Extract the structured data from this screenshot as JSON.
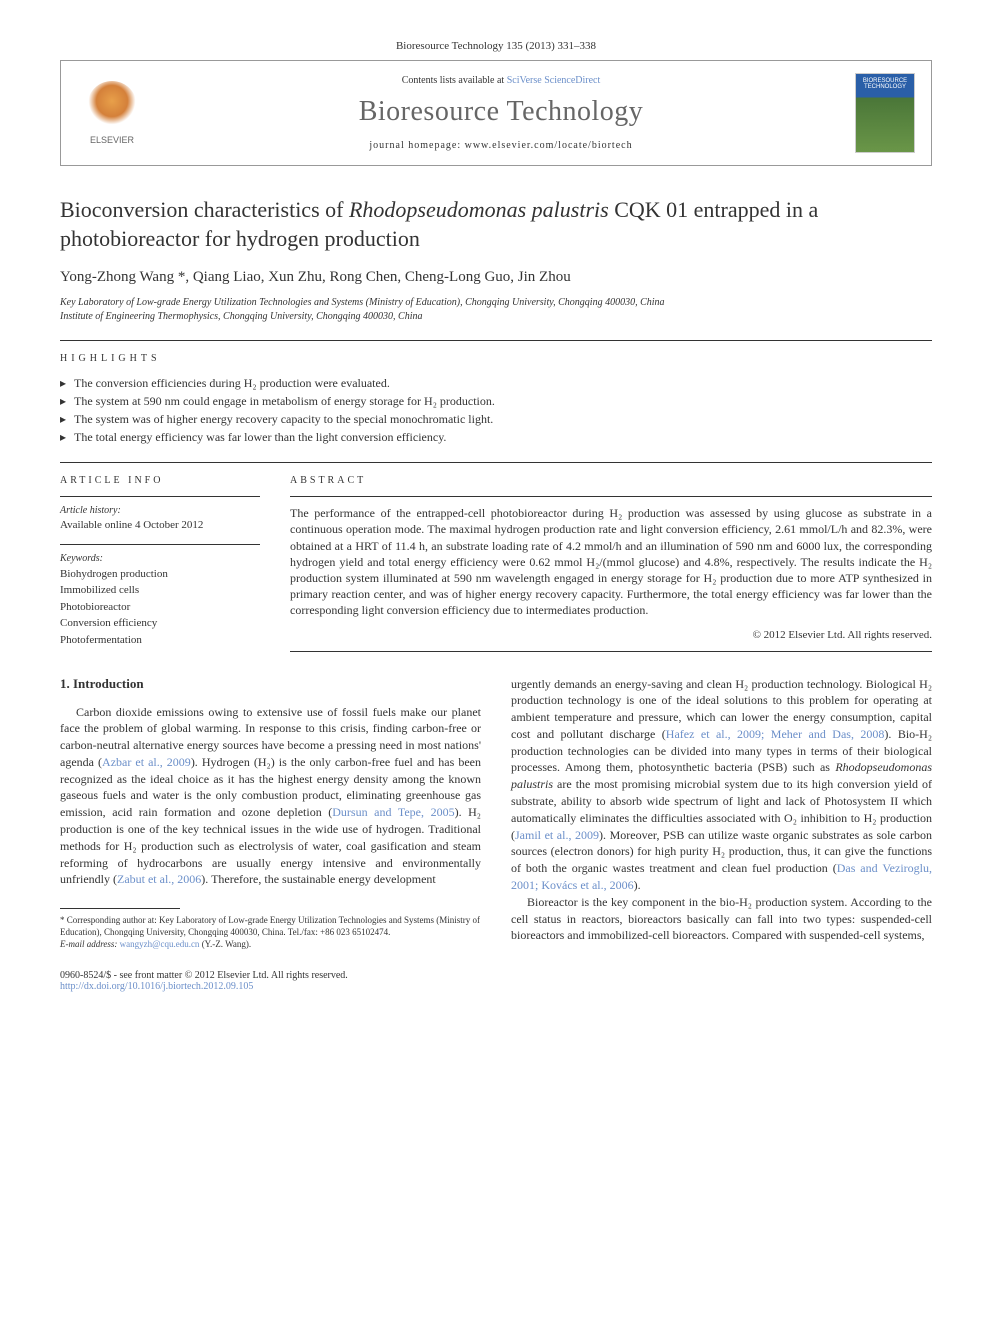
{
  "journal_ref": "Bioresource Technology 135 (2013) 331–338",
  "header": {
    "contents_prefix": "Contents lists available at ",
    "contents_link": "SciVerse ScienceDirect",
    "journal_name": "Bioresource Technology",
    "homepage_prefix": "journal homepage: ",
    "homepage_url": "www.elsevier.com/locate/biortech",
    "elsevier_label": "ELSEVIER",
    "cover_label": "BIORESOURCE TECHNOLOGY"
  },
  "title_parts": {
    "pre": "Bioconversion characteristics of ",
    "italic": "Rhodopseudomonas palustris",
    "post": " CQK 01 entrapped in a photobioreactor for hydrogen production"
  },
  "authors": "Yong-Zhong Wang *, Qiang Liao, Xun Zhu, Rong Chen, Cheng-Long Guo, Jin Zhou",
  "affiliations": [
    "Key Laboratory of Low-grade Energy Utilization Technologies and Systems (Ministry of Education), Chongqing University, Chongqing 400030, China",
    "Institute of Engineering Thermophysics, Chongqing University, Chongqing 400030, China"
  ],
  "highlights_label": "HIGHLIGHTS",
  "highlights": [
    "The conversion efficiencies during H₂ production were evaluated.",
    "The system at 590 nm could engage in metabolism of energy storage for H₂ production.",
    "The system was of higher energy recovery capacity to the special monochromatic light.",
    "The total energy efficiency was far lower than the light conversion efficiency."
  ],
  "article_info": {
    "heading": "ARTICLE INFO",
    "history_label": "Article history:",
    "history_text": "Available online 4 October 2012",
    "keywords_label": "Keywords:",
    "keywords": [
      "Biohydrogen production",
      "Immobilized cells",
      "Photobioreactor",
      "Conversion efficiency",
      "Photofermentation"
    ]
  },
  "abstract": {
    "heading": "ABSTRACT",
    "text": "The performance of the entrapped-cell photobioreactor during H₂ production was assessed by using glucose as substrate in a continuous operation mode. The maximal hydrogen production rate and light conversion efficiency, 2.61 mmol/L/h and 82.3%, were obtained at a HRT of 11.4 h, an substrate loading rate of 4.2 mmol/h and an illumination of 590 nm and 6000 lux, the corresponding hydrogen yield and total energy efficiency were 0.62 mmol H₂/(mmol glucose) and 4.8%, respectively. The results indicate the H₂ production system illuminated at 590 nm wavelength engaged in energy storage for H₂ production due to more ATP synthesized in primary reaction center, and was of higher energy recovery capacity. Furthermore, the total energy efficiency was far lower than the corresponding light conversion efficiency due to intermediates production.",
    "copyright": "© 2012 Elsevier Ltd. All rights reserved."
  },
  "introduction": {
    "heading": "1. Introduction",
    "col1_segments": [
      {
        "t": "text",
        "v": "Carbon dioxide emissions owing to extensive use of fossil fuels make our planet face the problem of global warming. In response to this crisis, finding carbon-free or carbon-neutral alternative energy sources have become a pressing need in most nations' agenda ("
      },
      {
        "t": "link",
        "v": "Azbar et al., 2009"
      },
      {
        "t": "text",
        "v": "). Hydrogen (H₂) is the only carbon-free fuel and has been recognized as the ideal choice as it has the highest energy density among the known gaseous fuels and water is the only combustion product, eliminating greenhouse gas emission, acid rain formation and ozone depletion ("
      },
      {
        "t": "link",
        "v": "Dursun and Tepe, 2005"
      },
      {
        "t": "text",
        "v": "). H₂ production is one of the key technical issues in the wide use of hydrogen. Traditional methods for H₂ production such as electrolysis of water, coal gasification and steam reforming of hydrocarbons are usually energy intensive and environmentally unfriendly ("
      },
      {
        "t": "link",
        "v": "Zabut et al., 2006"
      },
      {
        "t": "text",
        "v": "). Therefore, the sustainable energy development"
      }
    ],
    "col2_segments": [
      {
        "t": "text",
        "v": "urgently demands an energy-saving and clean H₂ production technology. Biological H₂ production technology is one of the ideal solutions to this problem for operating at ambient temperature and pressure, which can lower the energy consumption, capital cost and pollutant discharge ("
      },
      {
        "t": "link",
        "v": "Hafez et al., 2009; Meher and Das, 2008"
      },
      {
        "t": "text",
        "v": "). Bio-H₂ production technologies can be divided into many types in terms of their biological processes. Among them, photosynthetic bacteria (PSB) such as "
      },
      {
        "t": "italic",
        "v": "Rhodopseudomonas palustris"
      },
      {
        "t": "text",
        "v": " are the most promising microbial system due to its high conversion yield of substrate, ability to absorb wide spectrum of light and lack of Photosystem II which automatically eliminates the difficulties associated with O₂ inhibition to H₂ production ("
      },
      {
        "t": "link",
        "v": "Jamil et al., 2009"
      },
      {
        "t": "text",
        "v": "). Moreover, PSB can utilize waste organic substrates as sole carbon sources (electron donors) for high purity H₂ production, thus, it can give the functions of both the organic wastes treatment and clean fuel production ("
      },
      {
        "t": "link",
        "v": "Das and Veziroglu, 2001; Kovács et al., 2006"
      },
      {
        "t": "text",
        "v": ")."
      }
    ],
    "col2_para2": "Bioreactor is the key component in the bio-H₂ production system. According to the cell status in reactors, bioreactors basically can fall into two types: suspended-cell bioreactors and immobilized-cell bioreactors. Compared with suspended-cell systems,"
  },
  "footnote": {
    "corresponding": "* Corresponding author at: Key Laboratory of Low-grade Energy Utilization Technologies and Systems (Ministry of Education), Chongqing University, Chongqing 400030, China. Tel./fax: +86 023 65102474.",
    "email_label": "E-mail address: ",
    "email": "wangyzh@cqu.edu.cn",
    "email_suffix": " (Y.-Z. Wang)."
  },
  "doi": {
    "issn": "0960-8524/$ - see front matter © 2012 Elsevier Ltd. All rights reserved.",
    "link": "http://dx.doi.org/10.1016/j.biortech.2012.09.105"
  },
  "colors": {
    "link": "#6b8fc9",
    "text": "#333333",
    "elsevier_orange": "#e8a04a",
    "cover_blue": "#2a5fa8",
    "cover_green": "#6a9648"
  },
  "typography": {
    "title_fontsize": 22,
    "journal_name_fontsize": 28,
    "body_fontsize": 12,
    "author_fontsize": 15,
    "footnote_fontsize": 9
  }
}
